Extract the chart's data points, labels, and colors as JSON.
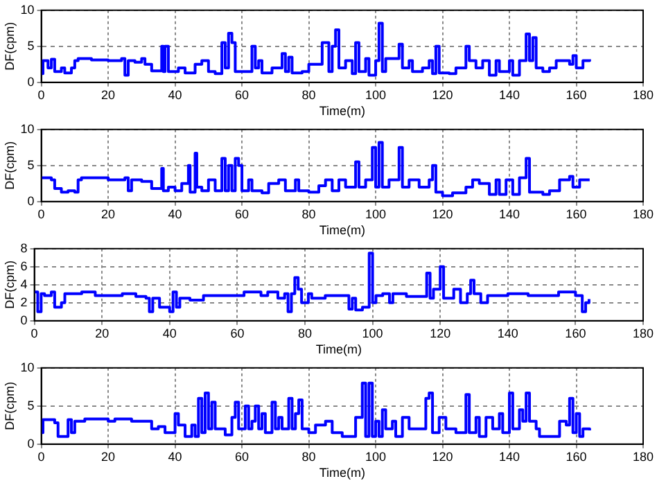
{
  "chart_data": [
    {
      "type": "step",
      "xlabel": "Time(m)",
      "ylabel": "DF(cpm)",
      "xlim": [
        0,
        180
      ],
      "xticks": [
        0,
        20,
        40,
        60,
        80,
        100,
        120,
        140,
        160,
        180
      ],
      "ylim": [
        0,
        10
      ],
      "yticks": [
        0,
        5,
        10
      ],
      "grid": true,
      "line_style": "solid",
      "marker": "none",
      "series": [
        {
          "color": "#0000ff",
          "x": [
            0,
            0.5,
            2,
            3,
            4,
            6,
            7,
            9,
            10,
            11,
            15,
            20,
            24,
            25,
            26,
            28,
            30,
            31,
            33,
            36,
            36.5,
            37,
            38,
            41,
            43,
            46,
            48,
            50,
            52,
            54,
            55,
            56,
            57,
            58,
            63,
            64,
            65,
            66,
            69,
            72,
            73,
            74,
            75,
            78,
            80,
            84,
            86,
            87,
            88,
            89,
            91,
            93,
            94,
            95,
            97,
            98,
            100,
            101,
            102,
            103,
            107,
            108,
            110,
            111,
            114,
            116,
            117,
            118,
            119,
            122,
            124,
            127,
            128,
            130,
            132,
            134,
            136,
            137,
            140,
            141,
            143,
            145,
            146,
            147,
            148,
            150,
            152,
            154,
            158,
            159,
            160,
            162,
            164
          ],
          "values": [
            1.2,
            3,
            2,
            3.2,
            1.5,
            2,
            1.3,
            2,
            3,
            3.3,
            3.1,
            3,
            3.3,
            1,
            3,
            2.8,
            3.3,
            2.5,
            1.6,
            5,
            1.5,
            5,
            1.5,
            2,
            1.3,
            2.5,
            3,
            1.5,
            1.2,
            5.5,
            2,
            6.8,
            5.5,
            1.5,
            5,
            2,
            3,
            1.3,
            2,
            4,
            1.5,
            3.5,
            1.3,
            1.5,
            2.5,
            5.5,
            1.5,
            5,
            7.3,
            2,
            3,
            1.2,
            5.5,
            1.5,
            3.3,
            1,
            3,
            8.2,
            1.5,
            3.3,
            5.3,
            2,
            3,
            1.5,
            2,
            3,
            1.2,
            5,
            1.3,
            1.2,
            2,
            5,
            3,
            2,
            3,
            1,
            3,
            1.5,
            3,
            1,
            3,
            6.7,
            3,
            6.2,
            2,
            1.5,
            2,
            3,
            2.5,
            3.7,
            2,
            3,
            3.2
          ]
        }
      ]
    },
    {
      "type": "step",
      "xlabel": "Time(m)",
      "ylabel": "DF(cpm)",
      "xlim": [
        0,
        180
      ],
      "xticks": [
        0,
        20,
        40,
        60,
        80,
        100,
        120,
        140,
        160,
        180
      ],
      "ylim": [
        0,
        10
      ],
      "yticks": [
        0,
        5,
        10
      ],
      "grid": true,
      "line_style": "solid",
      "marker": "none",
      "series": [
        {
          "color": "#0000ff",
          "x": [
            0,
            3,
            4,
            6,
            8,
            10,
            11,
            12,
            20,
            25,
            26,
            27,
            30,
            33,
            36,
            36.5,
            38,
            40,
            42,
            44,
            44.5,
            46,
            46.5,
            48,
            50,
            52,
            54,
            55,
            56,
            57,
            58,
            59,
            60,
            62,
            63,
            66,
            68,
            71,
            73,
            76,
            77,
            80,
            83,
            85,
            87,
            89,
            91,
            94,
            95,
            97,
            99,
            100,
            101,
            102,
            104,
            107,
            108,
            110,
            113,
            116,
            117,
            118,
            120,
            123,
            127,
            129,
            131,
            134,
            136,
            137,
            139,
            141,
            143,
            145,
            146,
            150,
            152,
            155,
            158,
            159,
            161,
            164
          ],
          "values": [
            3.3,
            3,
            1.8,
            1.3,
            1.5,
            1.3,
            3,
            3.3,
            3,
            3.3,
            1.5,
            3,
            2.8,
            1.8,
            4.6,
            1.5,
            2,
            1.5,
            2.5,
            5,
            1.3,
            6.7,
            2,
            1.5,
            3,
            1.5,
            6,
            1.5,
            5,
            1.5,
            6,
            5,
            1.5,
            3,
            1.5,
            1.2,
            2.5,
            3,
            1.5,
            3,
            1.5,
            1.3,
            2.2,
            3,
            1.5,
            3,
            2,
            5.5,
            2,
            3,
            7.5,
            2,
            8.2,
            2,
            3,
            7.5,
            2,
            3,
            2,
            3,
            5,
            1.3,
            0.8,
            1.2,
            2,
            3,
            2.5,
            1,
            3,
            1,
            3,
            1,
            3.3,
            6,
            1.3,
            1,
            1.5,
            3,
            3.5,
            2,
            3,
            3
          ]
        }
      ]
    },
    {
      "type": "step",
      "xlabel": "Time(m)",
      "ylabel": "DF(cpm)",
      "xlim": [
        0,
        180
      ],
      "xticks": [
        0,
        20,
        40,
        60,
        80,
        100,
        120,
        140,
        160,
        180
      ],
      "ylim": [
        0,
        8
      ],
      "yticks": [
        0,
        2,
        4,
        6,
        8
      ],
      "grid": true,
      "line_style": "solid",
      "marker": "none",
      "series": [
        {
          "color": "#0000ff",
          "x": [
            0,
            1,
            2,
            3,
            5,
            6,
            8,
            9,
            14,
            18,
            26,
            30,
            33,
            34,
            35,
            37,
            40,
            41,
            42,
            43,
            46,
            50,
            60,
            62,
            67,
            69,
            72,
            74,
            75,
            76,
            77,
            78,
            79,
            81,
            82,
            86,
            92,
            93,
            94,
            95,
            97,
            98,
            99,
            100,
            101,
            103,
            105,
            106,
            110,
            116,
            117,
            118,
            120,
            121,
            124,
            126,
            128,
            129,
            130,
            132,
            134,
            140,
            146,
            155,
            160,
            162,
            163,
            164
          ],
          "values": [
            3.2,
            1,
            3,
            2.8,
            3.2,
            1.5,
            2,
            3,
            3.2,
            2.8,
            3,
            2.7,
            2.5,
            1,
            2.5,
            1.5,
            1,
            3.2,
            1.5,
            2.5,
            2.3,
            2.8,
            2.8,
            3.2,
            2.8,
            3.2,
            2.5,
            3,
            1,
            3,
            4.8,
            3.5,
            2,
            3,
            2.5,
            2.8,
            2.8,
            1.3,
            2.5,
            1.2,
            1.5,
            1.5,
            7.5,
            2,
            2.8,
            3,
            2,
            3,
            2.7,
            5.3,
            2.5,
            3.5,
            6,
            2.5,
            3.5,
            2,
            3,
            4.5,
            3,
            2,
            2.8,
            3,
            2.8,
            3.2,
            2.8,
            1,
            2,
            2.4
          ]
        }
      ]
    },
    {
      "type": "step",
      "xlabel": "Time(m)",
      "ylabel": "DF(cpm)",
      "xlim": [
        0,
        180
      ],
      "xticks": [
        0,
        20,
        40,
        60,
        80,
        100,
        120,
        140,
        160,
        180
      ],
      "ylim": [
        0,
        10
      ],
      "yticks": [
        0,
        5,
        10
      ],
      "grid": true,
      "line_style": "solid",
      "marker": "none",
      "series": [
        {
          "color": "#0000ff",
          "x": [
            0,
            0.5,
            4,
            5,
            8,
            9,
            10,
            13,
            20,
            22,
            27,
            33,
            35,
            37,
            40,
            41,
            43,
            45,
            46,
            47,
            48,
            49,
            50,
            51,
            52,
            55,
            57,
            58,
            59,
            61,
            62,
            63,
            64,
            65,
            66,
            67,
            69,
            70,
            71,
            72,
            74,
            75,
            76,
            77,
            78,
            80,
            82,
            85,
            87,
            90,
            93,
            94,
            96,
            97,
            98,
            99,
            100,
            101,
            102,
            103,
            105,
            106,
            108,
            110,
            113,
            115,
            116,
            117,
            119,
            121,
            124,
            127,
            128,
            130,
            131,
            133,
            135,
            137,
            138,
            140,
            141,
            143,
            144,
            145,
            146,
            148,
            149,
            152,
            155,
            157,
            158,
            159,
            160,
            161,
            162,
            164
          ],
          "values": [
            1.5,
            3.2,
            2.8,
            1,
            3.2,
            1.5,
            3,
            3.3,
            3,
            3.3,
            3,
            2,
            2.3,
            1.5,
            4,
            2.5,
            1,
            2.5,
            1,
            6,
            1.5,
            6.7,
            2,
            5.5,
            2,
            1.2,
            3.5,
            5.5,
            2,
            5,
            2,
            3,
            5,
            2,
            4,
            1.5,
            5.5,
            2,
            3.5,
            2,
            6,
            2,
            4,
            5.8,
            2,
            1.5,
            2.5,
            3,
            1.5,
            1,
            1,
            3.5,
            8,
            1,
            8,
            1,
            3,
            1,
            4.5,
            2,
            3,
            1,
            3.5,
            2,
            2,
            6,
            6.7,
            1.5,
            3.5,
            2,
            1.5,
            6.5,
            1.5,
            3.5,
            1,
            3.5,
            2,
            4,
            1.5,
            6.7,
            2,
            4.5,
            3,
            6.7,
            3,
            2,
            1,
            1,
            3,
            2.5,
            6,
            1.5,
            4,
            1,
            2,
            1.8
          ]
        }
      ]
    }
  ]
}
